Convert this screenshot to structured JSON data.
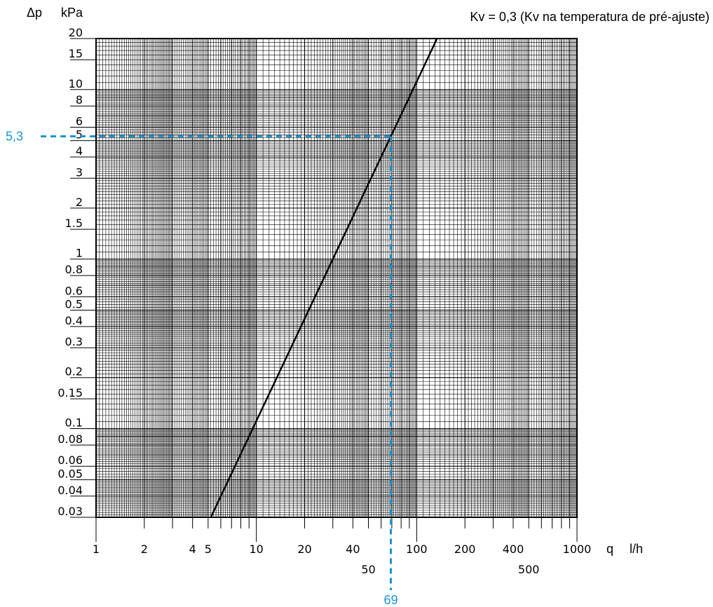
{
  "chart_data": {
    "type": "line",
    "title": "Kv = 0,3 (Kv na temperatura de pré-ajuste)",
    "y_symbol": "Δp",
    "y_unit": "kPa",
    "x_symbol": "q",
    "x_unit": "l/h",
    "xscale": "log",
    "yscale": "log",
    "xlim": [
      1,
      1000
    ],
    "ylim": [
      0.03,
      20
    ],
    "grid": true,
    "x_ticks_row1": [
      "1",
      "2",
      "4",
      "5",
      "10",
      "20",
      "40",
      "100",
      "200",
      "400",
      "1000"
    ],
    "x_ticks_row2": [
      "50",
      "500"
    ],
    "y_ticks": [
      "20",
      "15",
      "10",
      "8",
      "6",
      "5",
      "4",
      "3",
      "2",
      "1.5",
      "1",
      "0.8",
      "0.6",
      "0.5",
      "0.4",
      "0.3",
      "0.2",
      "0.15",
      "0.1",
      "0.08",
      "0.06",
      "0.05",
      "0.04",
      "0.03"
    ],
    "series": [
      {
        "x": [
          5.2,
          134
        ],
        "y": [
          0.03,
          20
        ]
      }
    ],
    "reference": {
      "x": 69,
      "y": 5.3,
      "x_label": "69",
      "y_label": "5,3"
    },
    "colors": {
      "line": "#000000",
      "grid": "#000000",
      "reference": "#1a94d1"
    }
  }
}
